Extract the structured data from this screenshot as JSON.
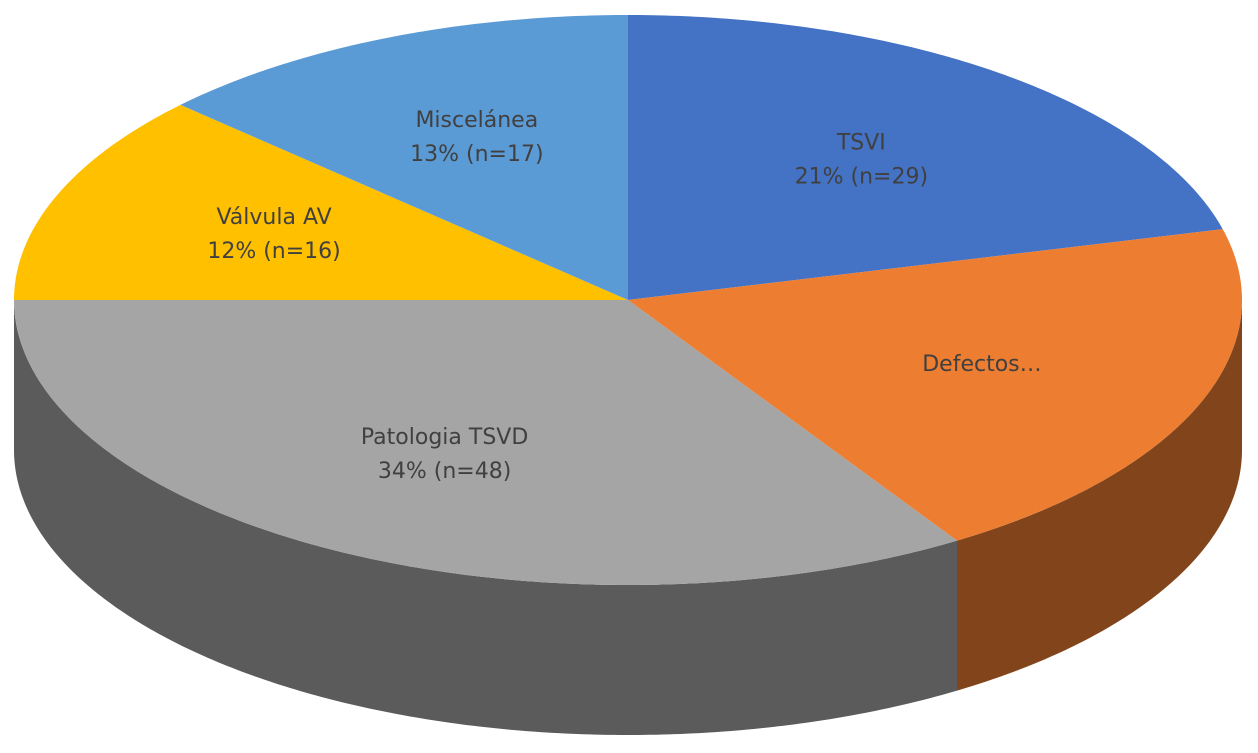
{
  "chart_data": {
    "type": "pie3d",
    "categories": [
      "TSVI",
      "Defectos…",
      "Patologia TSVD",
      "Válvula AV",
      "Miscelánea"
    ],
    "values": [
      21,
      20,
      34,
      12,
      13
    ],
    "value_labels": [
      "21% (n=29)",
      null,
      "34% (n=48)",
      "12% (n=16)",
      "13% (n=17)"
    ],
    "colors": [
      "#4472c4",
      "#ed7d31",
      "#a5a5a5",
      "#ffc000",
      "#5b9bd5"
    ]
  }
}
